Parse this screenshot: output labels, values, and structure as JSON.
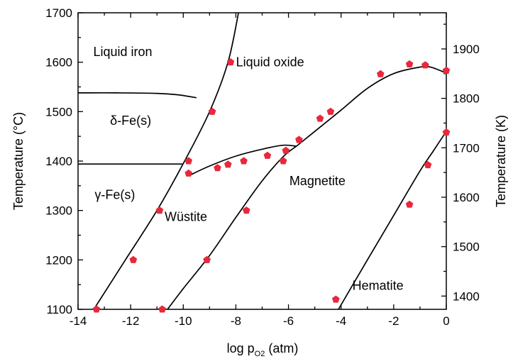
{
  "chart_data": {
    "type": "scatter",
    "xlabel": {
      "main": "log p",
      "sub": "O2",
      "unit": " (atm)"
    },
    "ylabel": "Temperature (°C)",
    "y2label": "Temperature (K)",
    "xlim": [
      -14,
      0
    ],
    "ylim": [
      1100,
      1700
    ],
    "y2lim": [
      1373.15,
      1973.15
    ],
    "xticks": [
      -14,
      -12,
      -10,
      -8,
      -6,
      -4,
      -2,
      0
    ],
    "xtick_labels": [
      "-14",
      "-12",
      "-10",
      "-8",
      "-6",
      "-4",
      "-2",
      "0"
    ],
    "yticks": [
      1100,
      1200,
      1300,
      1400,
      1500,
      1600,
      1700
    ],
    "ytick_labels": [
      "1100",
      "1200",
      "1300",
      "1400",
      "1500",
      "1600",
      "1700"
    ],
    "y2ticks": [
      1400,
      1500,
      1600,
      1700,
      1800,
      1900
    ],
    "y2tick_labels": [
      "1400",
      "1500",
      "1600",
      "1700",
      "1800",
      "1900"
    ],
    "grid": false,
    "point_color": "#e8283c",
    "regions": [
      {
        "name": "liquid-iron",
        "label": "Liquid iron",
        "x": -12.3,
        "y": 1621
      },
      {
        "name": "liquid-oxide",
        "label": "Liquid oxide",
        "x": -6.7,
        "y": 1600
      },
      {
        "name": "delta-fe",
        "label": "δ-Fe(s)",
        "x": -12.0,
        "y": 1482
      },
      {
        "name": "gamma-fe",
        "label": "γ-Fe(s)",
        "x": -12.6,
        "y": 1332
      },
      {
        "name": "wustite",
        "label": "Wüstite",
        "x": -9.9,
        "y": 1287
      },
      {
        "name": "magnetite",
        "label": "Magnetite",
        "x": -4.9,
        "y": 1360
      },
      {
        "name": "hematite",
        "label": "Hematite",
        "x": -2.6,
        "y": 1148
      }
    ],
    "boundaries": [
      {
        "name": "fe-liquid-iron-boundary",
        "points": [
          [
            -13.4,
            1100
          ],
          [
            -12.2,
            1200
          ],
          [
            -11.0,
            1300
          ],
          [
            -10.0,
            1395
          ],
          [
            -9.0,
            1500
          ],
          [
            -8.3,
            1600
          ],
          [
            -7.9,
            1700
          ]
        ]
      },
      {
        "name": "delta-liquid-boundary",
        "points": [
          [
            -14,
            1538
          ],
          [
            -12.5,
            1538
          ],
          [
            -11.0,
            1537
          ],
          [
            -10.2,
            1534
          ],
          [
            -9.5,
            1528
          ]
        ]
      },
      {
        "name": "gamma-delta-boundary",
        "points": [
          [
            -14,
            1394
          ],
          [
            -12.5,
            1394
          ],
          [
            -11.0,
            1394
          ],
          [
            -10.0,
            1394
          ]
        ]
      },
      {
        "name": "wustite-upper-boundary",
        "points": [
          [
            -9.8,
            1370
          ],
          [
            -9.0,
            1390
          ],
          [
            -8.0,
            1410
          ],
          [
            -7.0,
            1424
          ],
          [
            -6.2,
            1432
          ],
          [
            -5.7,
            1430
          ]
        ]
      },
      {
        "name": "wustite-magnetite-boundary",
        "points": [
          [
            -10.6,
            1100
          ],
          [
            -10.0,
            1142
          ],
          [
            -9.0,
            1209
          ],
          [
            -8.0,
            1286
          ],
          [
            -7.0,
            1360
          ],
          [
            -6.2,
            1409
          ],
          [
            -5.7,
            1430
          ]
        ]
      },
      {
        "name": "magnetite-liquid-boundary",
        "points": [
          [
            -5.7,
            1430
          ],
          [
            -5.0,
            1460
          ],
          [
            -4.0,
            1503
          ],
          [
            -3.0,
            1547
          ],
          [
            -2.0,
            1577
          ],
          [
            -1.0,
            1590
          ],
          [
            -0.6,
            1590
          ],
          [
            0,
            1578
          ]
        ]
      },
      {
        "name": "magnetite-hematite-boundary",
        "points": [
          [
            -4.1,
            1100
          ],
          [
            -3.0,
            1200
          ],
          [
            -2.0,
            1290
          ],
          [
            -1.0,
            1380
          ],
          [
            -0.5,
            1420
          ],
          [
            0,
            1460
          ]
        ]
      }
    ],
    "series": [
      {
        "values": [
          {
            "x": -13.3,
            "y": 1100
          },
          {
            "x": -11.9,
            "y": 1200
          },
          {
            "x": -10.9,
            "y": 1300
          },
          {
            "x": -9.8,
            "y": 1400
          },
          {
            "x": -9.8,
            "y": 1375
          },
          {
            "x": -8.9,
            "y": 1500
          },
          {
            "x": -8.2,
            "y": 1600
          },
          {
            "x": -8.7,
            "y": 1386
          },
          {
            "x": -8.3,
            "y": 1393
          },
          {
            "x": -7.7,
            "y": 1400
          },
          {
            "x": -6.8,
            "y": 1411
          },
          {
            "x": -6.2,
            "y": 1400
          },
          {
            "x": -6.1,
            "y": 1421
          },
          {
            "x": -5.6,
            "y": 1443
          },
          {
            "x": -4.8,
            "y": 1486
          },
          {
            "x": -4.4,
            "y": 1500
          },
          {
            "x": -2.5,
            "y": 1576
          },
          {
            "x": -1.4,
            "y": 1596
          },
          {
            "x": -0.8,
            "y": 1594
          },
          {
            "x": 0,
            "y": 1583
          },
          {
            "x": -10.8,
            "y": 1100
          },
          {
            "x": -9.1,
            "y": 1200
          },
          {
            "x": -7.6,
            "y": 1300
          },
          {
            "x": -4.2,
            "y": 1120
          },
          {
            "x": -1.4,
            "y": 1312
          },
          {
            "x": -0.7,
            "y": 1392
          },
          {
            "x": 0,
            "y": 1458
          }
        ]
      }
    ]
  }
}
